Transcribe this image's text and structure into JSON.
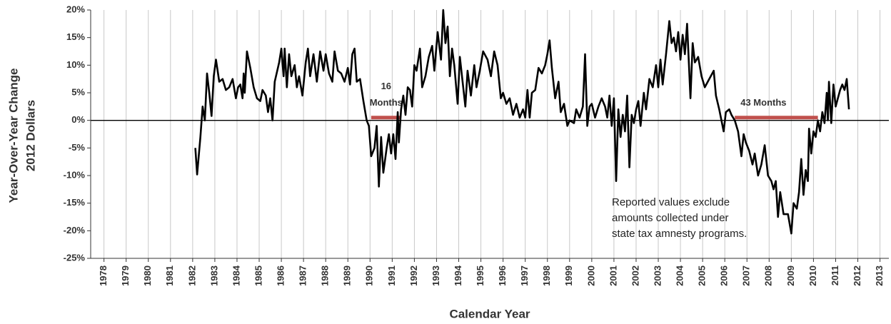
{
  "chart_data": {
    "type": "line",
    "xlabel": "Calendar Year",
    "ylabel": [
      "Year-Over-Year Change",
      "2012 Dollars"
    ],
    "xlim": [
      1977.4,
      2013.4
    ],
    "ylim": [
      -25,
      20
    ],
    "xticks": [
      1978,
      1979,
      1980,
      1981,
      1982,
      1983,
      1984,
      1985,
      1986,
      1987,
      1988,
      1989,
      1990,
      1991,
      1992,
      1993,
      1994,
      1995,
      1996,
      1997,
      1998,
      1999,
      2000,
      2001,
      2002,
      2003,
      2004,
      2005,
      2006,
      2007,
      2008,
      2009,
      2010,
      2011,
      2012,
      2013
    ],
    "yticks": [
      {
        "value": -25,
        "label": "-25%"
      },
      {
        "value": -20,
        "label": "-20%"
      },
      {
        "value": -15,
        "label": "-15%"
      },
      {
        "value": -10,
        "label": "-10%"
      },
      {
        "value": -5,
        "label": "-5%"
      },
      {
        "value": 0,
        "label": "0%"
      },
      {
        "value": 5,
        "label": "5%"
      },
      {
        "value": 10,
        "label": "10%"
      },
      {
        "value": 15,
        "label": "15%"
      },
      {
        "value": 20,
        "label": "20%"
      }
    ],
    "xgrid": true,
    "series": [
      {
        "color": "#000000",
        "x": [
          1982.12,
          1982.2,
          1982.35,
          1982.45,
          1982.55,
          1982.65,
          1982.75,
          1982.85,
          1982.95,
          1983.05,
          1983.2,
          1983.35,
          1983.5,
          1983.65,
          1983.8,
          1983.95,
          1984.05,
          1984.15,
          1984.25,
          1984.3,
          1984.35,
          1984.45,
          1984.6,
          1984.75,
          1984.9,
          1985.05,
          1985.15,
          1985.3,
          1985.4,
          1985.5,
          1985.6,
          1985.7,
          1985.9,
          1986.0,
          1986.1,
          1986.15,
          1986.25,
          1986.35,
          1986.45,
          1986.6,
          1986.7,
          1986.8,
          1986.95,
          1987.1,
          1987.2,
          1987.3,
          1987.45,
          1987.6,
          1987.75,
          1987.9,
          1988.0,
          1988.15,
          1988.3,
          1988.4,
          1988.55,
          1988.7,
          1988.85,
          1989.0,
          1989.1,
          1989.2,
          1989.3,
          1989.4,
          1989.55,
          1989.7,
          1989.85,
          1989.95,
          1990.05,
          1990.2,
          1990.3,
          1990.4,
          1990.5,
          1990.6,
          1990.75,
          1990.85,
          1990.95,
          1991.05,
          1991.15,
          1991.25,
          1991.3,
          1991.4,
          1991.5,
          1991.6,
          1991.7,
          1991.8,
          1991.9,
          1992.0,
          1992.1,
          1992.25,
          1992.35,
          1992.5,
          1992.65,
          1992.8,
          1992.9,
          1993.05,
          1993.2,
          1993.3,
          1993.4,
          1993.5,
          1993.6,
          1993.7,
          1993.8,
          1993.95,
          1994.05,
          1994.3,
          1994.4,
          1994.55,
          1994.7,
          1994.8,
          1994.95,
          1995.1,
          1995.3,
          1995.45,
          1995.6,
          1995.75,
          1995.9,
          1996.0,
          1996.15,
          1996.3,
          1996.45,
          1996.6,
          1996.75,
          1996.9,
          1997.0,
          1997.1,
          1997.2,
          1997.3,
          1997.45,
          1997.6,
          1997.75,
          1997.9,
          1998.0,
          1998.1,
          1998.2,
          1998.35,
          1998.5,
          1998.6,
          1998.75,
          1998.9,
          1999.0,
          1999.2,
          1999.3,
          1999.45,
          1999.6,
          1999.7,
          1999.8,
          1999.9,
          2000.0,
          2000.15,
          2000.3,
          2000.45,
          2000.6,
          2000.7,
          2000.8,
          2000.9,
          2001.0,
          2001.1,
          2001.2,
          2001.3,
          2001.4,
          2001.5,
          2001.6,
          2001.7,
          2001.8,
          2001.9,
          2002.0,
          2002.1,
          2002.2,
          2002.35,
          2002.45,
          2002.6,
          2002.75,
          2002.9,
          2003.0,
          2003.1,
          2003.2,
          2003.35,
          2003.5,
          2003.6,
          2003.7,
          2003.8,
          2003.9,
          2004.0,
          2004.1,
          2004.2,
          2004.3,
          2004.45,
          2004.55,
          2004.65,
          2004.8,
          2004.95,
          2005.1,
          2005.3,
          2005.5,
          2005.6,
          2005.75,
          2005.95,
          2006.05,
          2006.2,
          2006.3,
          2006.45,
          2006.6,
          2006.75,
          2006.85,
          2006.95,
          2007.1,
          2007.25,
          2007.35,
          2007.5,
          2007.65,
          2007.8,
          2007.95,
          2008.1,
          2008.2,
          2008.3,
          2008.4,
          2008.5,
          2008.65,
          2008.85,
          2009.0,
          2009.1,
          2009.25,
          2009.35,
          2009.45,
          2009.55,
          2009.65,
          2009.75,
          2009.8,
          2009.9,
          2010.0,
          2010.1,
          2010.2,
          2010.3,
          2010.4,
          2010.5,
          2010.6,
          2010.65,
          2010.7,
          2010.8,
          2010.9,
          2011.0,
          2011.2,
          2011.3,
          2011.4,
          2011.5,
          2011.6
        ],
        "values": [
          -5,
          -9.8,
          -3,
          2.5,
          0,
          8.5,
          5,
          0.8,
          8,
          11,
          7,
          7.5,
          5.5,
          6,
          7.5,
          4,
          6,
          6.5,
          4,
          8.5,
          5,
          12.5,
          9.5,
          6,
          4,
          3.5,
          5.5,
          4.5,
          1.5,
          4,
          0,
          7,
          10.5,
          13,
          8,
          13,
          6,
          12,
          8,
          10,
          6,
          8,
          4.5,
          10.5,
          13,
          8,
          12,
          7,
          12.5,
          9,
          12,
          8.5,
          7,
          12.5,
          9,
          8.5,
          7,
          9.5,
          6.5,
          12,
          13,
          7,
          7.5,
          3.5,
          0,
          -1,
          -6.5,
          -5,
          -1,
          -12,
          -3,
          -9.5,
          -5,
          -2.5,
          -6,
          -2.5,
          -7,
          1.5,
          -4,
          2,
          4.5,
          1,
          6,
          5.5,
          2.5,
          10,
          9,
          13,
          6,
          8,
          11.5,
          13.5,
          9,
          16,
          11,
          20,
          14,
          17,
          8,
          13,
          10,
          3,
          11.5,
          2.5,
          9,
          4.5,
          10,
          6,
          9,
          12.5,
          11,
          8,
          12.5,
          10,
          4,
          5,
          3,
          4,
          1,
          3,
          0.5,
          2,
          0.5,
          5.5,
          0.5,
          5,
          5.5,
          9.5,
          8.5,
          10,
          12,
          14.5,
          9.5,
          4,
          7,
          1.5,
          3,
          -1,
          0,
          -0.5,
          2,
          0.5,
          2.5,
          12,
          -1,
          2.5,
          3,
          0.5,
          2.5,
          4,
          2.5,
          0.5,
          4.5,
          -1,
          4,
          -11,
          2,
          -3,
          1,
          -2,
          4.5,
          -8.5,
          1,
          -0.5,
          2,
          3.5,
          -1,
          5,
          2,
          7.5,
          6,
          10,
          6,
          11,
          6.5,
          12,
          18,
          14,
          15,
          12.5,
          16,
          11,
          15.5,
          12,
          17.5,
          4,
          14,
          10.5,
          11.5,
          8,
          6,
          7.5,
          9,
          4.5,
          2,
          -2,
          1.5,
          2,
          1,
          0,
          -2,
          -6.5,
          -2.5,
          -4,
          -5.5,
          -8,
          -6,
          -10,
          -8,
          -4.5,
          -10,
          -11,
          -12.5,
          -11,
          -17.5,
          -13,
          -17,
          -17,
          -20.5,
          -15,
          -16,
          -13,
          -7,
          -13.5,
          -9,
          -11,
          -1.5,
          -6,
          -2,
          -3,
          0,
          -2,
          1.5,
          -0.5,
          5,
          0,
          7,
          -0.5,
          6.5,
          2.5,
          5.5,
          6.5,
          5.5,
          7.5,
          2
        ]
      }
    ],
    "periods": [
      {
        "label": [
          "16",
          "Months"
        ],
        "start": 1990.05,
        "end": 1991.4,
        "value": 0.5,
        "color": "#c0504d"
      },
      {
        "label": [
          "43 Months"
        ],
        "start": 2006.45,
        "end": 2010.2,
        "value": 0.5,
        "color": "#c0504d"
      }
    ],
    "note": [
      "Reported values exclude",
      "amounts collected under",
      "state tax amnesty programs."
    ]
  }
}
